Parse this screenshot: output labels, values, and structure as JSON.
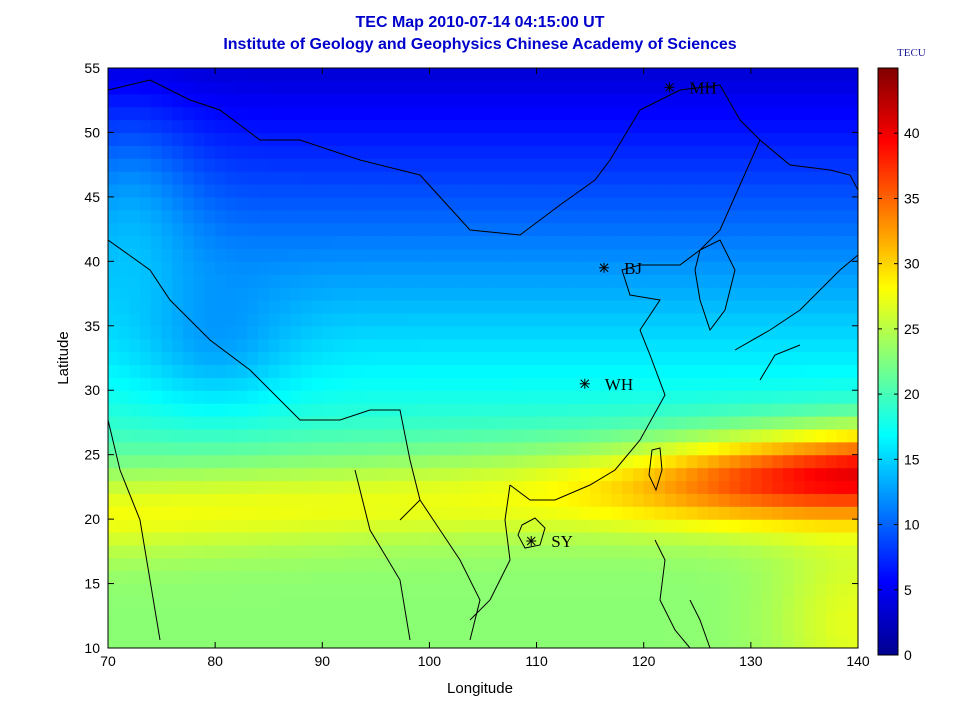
{
  "chart_data": {
    "type": "heatmap",
    "title": "TEC Map 2010-07-14 04:15:00 UT",
    "subtitle": "Institute of Geology and Geophysics Chinese Academy of Sciences",
    "xlabel": "Longitude",
    "ylabel": "Latitude",
    "xlim": [
      70,
      140
    ],
    "ylim": [
      10,
      55
    ],
    "xticks": [
      "70",
      "80",
      "90",
      "100",
      "110",
      "120",
      "130",
      "140"
    ],
    "yticks": [
      "10",
      "15",
      "20",
      "25",
      "30",
      "35",
      "40",
      "45",
      "50",
      "55"
    ],
    "colorbar": {
      "label": "TECU",
      "range": [
        0,
        45
      ],
      "ticks": [
        "0",
        "5",
        "10",
        "15",
        "20",
        "25",
        "30",
        "35",
        "40"
      ],
      "colormap": "jet"
    },
    "stations": [
      {
        "name": "MH",
        "lon": 122.4,
        "lat": 53.5
      },
      {
        "name": "BJ",
        "lon": 116.3,
        "lat": 39.5
      },
      {
        "name": "WH",
        "lon": 114.5,
        "lat": 30.5
      },
      {
        "name": "SY",
        "lon": 109.5,
        "lat": 18.3
      }
    ],
    "features": {
      "high_band": "TEC maximum ~44 TECU near 137E 23N, band extending west through 20-25N",
      "low_region": "TEC minimum ~3 TECU near 120-130E 52-55N"
    },
    "grid": false
  }
}
